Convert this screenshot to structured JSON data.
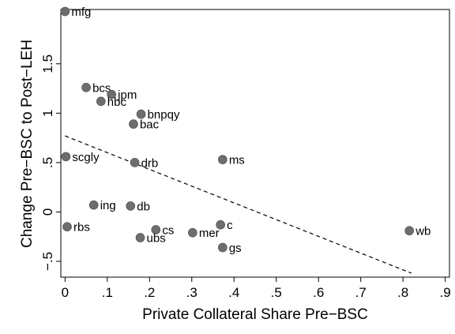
{
  "chart_data": {
    "type": "scatter",
    "xlabel": "Private Collateral Share Pre−BSC",
    "ylabel": "Change Pre−BSC to Post−LEH",
    "xlim": [
      -0.01,
      0.91
    ],
    "ylim": [
      -0.66,
      2.05
    ],
    "x_ticks": [
      {
        "value": 0,
        "label": "0"
      },
      {
        "value": 0.1,
        "label": ".1"
      },
      {
        "value": 0.2,
        "label": ".2"
      },
      {
        "value": 0.3,
        "label": ".3"
      },
      {
        "value": 0.4,
        "label": ".4"
      },
      {
        "value": 0.5,
        "label": ".5"
      },
      {
        "value": 0.6,
        "label": ".6"
      },
      {
        "value": 0.7,
        "label": ".7"
      },
      {
        "value": 0.8,
        "label": ".8"
      },
      {
        "value": 0.9,
        "label": ".9"
      }
    ],
    "y_ticks": [
      {
        "value": -0.5,
        "label": "−.5"
      },
      {
        "value": 0,
        "label": "0"
      },
      {
        "value": 0.5,
        "label": ".5"
      },
      {
        "value": 1,
        "label": "1"
      },
      {
        "value": 1.5,
        "label": "1.5"
      }
    ],
    "grid": false,
    "legend": "none",
    "marker_color": "#6e6e6e",
    "fit_line": {
      "style": "dashed",
      "x": [
        0,
        0.82
      ],
      "y": [
        0.77,
        -0.62
      ]
    },
    "points": [
      {
        "label": "mfg",
        "x": 0.0,
        "y": 2.03
      },
      {
        "label": "bcs",
        "x": 0.05,
        "y": 1.26
      },
      {
        "label": "jpm",
        "x": 0.11,
        "y": 1.19
      },
      {
        "label": "hbc",
        "x": 0.085,
        "y": 1.12
      },
      {
        "label": "bnpqy",
        "x": 0.18,
        "y": 0.99
      },
      {
        "label": "bac",
        "x": 0.162,
        "y": 0.89
      },
      {
        "label": "scgly",
        "x": 0.002,
        "y": 0.56
      },
      {
        "label": "drb",
        "x": 0.165,
        "y": 0.5
      },
      {
        "label": "ms",
        "x": 0.373,
        "y": 0.53
      },
      {
        "label": "ing",
        "x": 0.068,
        "y": 0.07
      },
      {
        "label": "db",
        "x": 0.155,
        "y": 0.06
      },
      {
        "label": "rbs",
        "x": 0.005,
        "y": -0.15
      },
      {
        "label": "cs",
        "x": 0.215,
        "y": -0.18
      },
      {
        "label": "ubs",
        "x": 0.178,
        "y": -0.26
      },
      {
        "label": "mer",
        "x": 0.302,
        "y": -0.21
      },
      {
        "label": "c",
        "x": 0.368,
        "y": -0.13
      },
      {
        "label": "gs",
        "x": 0.373,
        "y": -0.36
      },
      {
        "label": "wb",
        "x": 0.815,
        "y": -0.19
      }
    ]
  }
}
